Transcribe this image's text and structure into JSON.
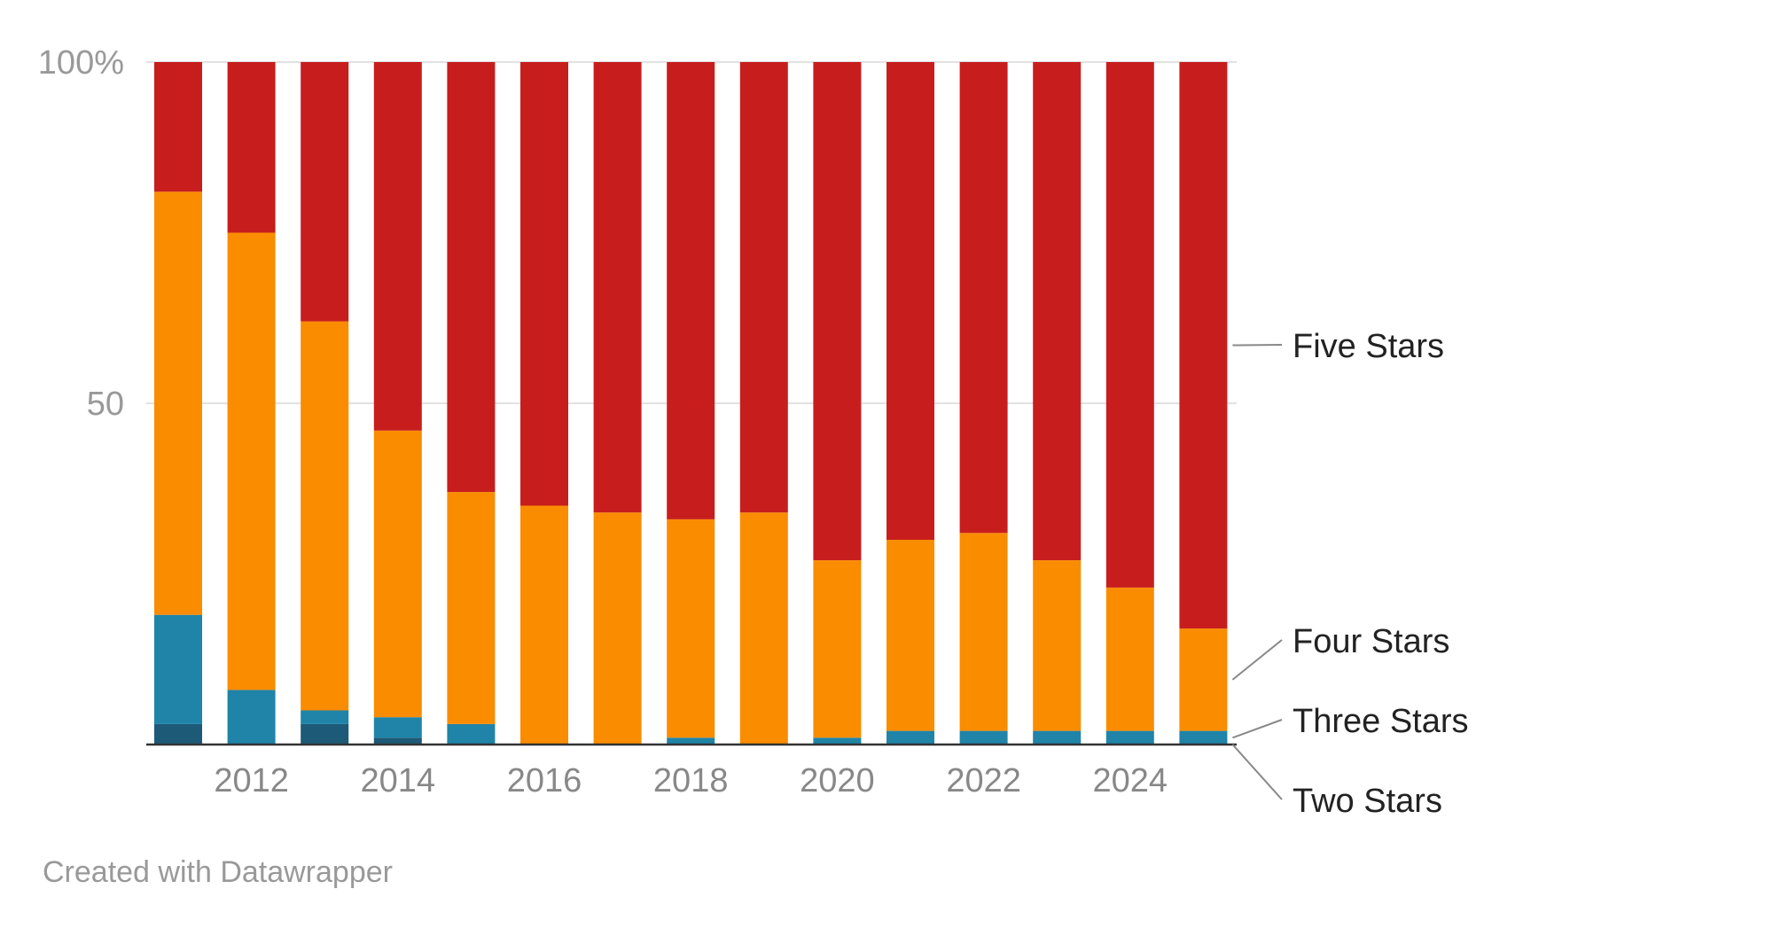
{
  "chart_data": {
    "type": "bar",
    "stacked": true,
    "orientation": "vertical",
    "categories": [
      "2011",
      "2012",
      "2013",
      "2014",
      "2015",
      "2016",
      "2017",
      "2018",
      "2019",
      "2020",
      "2021",
      "2022",
      "2023",
      "2024",
      "2025"
    ],
    "x_tick_labels": [
      "2012",
      "2014",
      "2016",
      "2018",
      "2020",
      "2022",
      "2024"
    ],
    "y_tick_labels": [
      "100%",
      "50"
    ],
    "ylim": [
      0,
      100
    ],
    "grid": true,
    "legend_placement": "right",
    "series": [
      {
        "name": "Two Stars",
        "color": "#1c5a77",
        "values": [
          3,
          0,
          3,
          1,
          0,
          0,
          0,
          0,
          0,
          0,
          0,
          0,
          0,
          0,
          0
        ]
      },
      {
        "name": "Three Stars",
        "color": "#1f84a8",
        "values": [
          16,
          8,
          2,
          3,
          3,
          0,
          0,
          1,
          0,
          1,
          2,
          2,
          2,
          2,
          2
        ]
      },
      {
        "name": "Four Stars",
        "color": "#fa8c00",
        "values": [
          62,
          67,
          57,
          42,
          34,
          35,
          34,
          32,
          34,
          26,
          28,
          29,
          25,
          21,
          15
        ]
      },
      {
        "name": "Five Stars",
        "color": "#c71e1d",
        "values": [
          19,
          25,
          38,
          54,
          63,
          65,
          66,
          67,
          66,
          73,
          70,
          69,
          73,
          77,
          83
        ]
      }
    ],
    "credit": "Created with Datawrapper"
  }
}
